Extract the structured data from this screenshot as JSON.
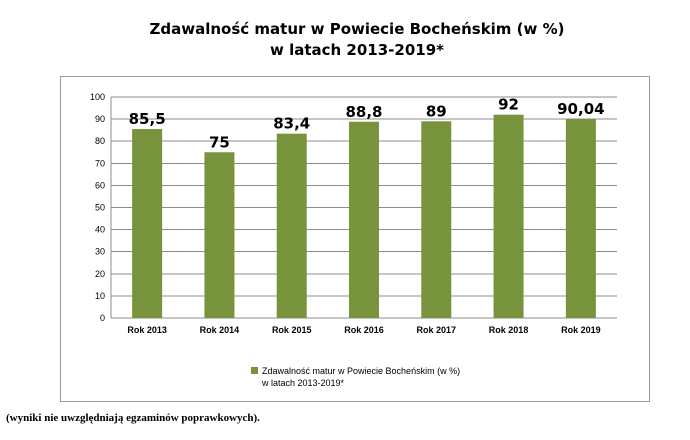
{
  "chart_data": {
    "type": "bar",
    "title_line1": "Zdawalność matur w Powiecie Bocheńskim (w %)",
    "title_line2": "w latach 2013-2019*",
    "categories": [
      "Rok 2013",
      "Rok 2014",
      "Rok 2015",
      "Rok 2016",
      "Rok 2017",
      "Rok 2018",
      "Rok 2019"
    ],
    "values": [
      85.5,
      75,
      83.4,
      88.8,
      89,
      92,
      90.04
    ],
    "data_labels": [
      "85,5",
      "75",
      "83,4",
      "88,8",
      "89",
      "92",
      "90,04"
    ],
    "series_name_line1": "Zdawalność matur w Powiecie Bocheńskim (w %)",
    "series_name_line2": "w latach 2013-2019*",
    "yticks": [
      0,
      10,
      20,
      30,
      40,
      50,
      60,
      70,
      80,
      90,
      100
    ],
    "ylim": [
      0,
      100
    ],
    "xlabel": "",
    "ylabel": "",
    "grid": true,
    "legend_position": "bottom"
  },
  "colors": {
    "bar": "#77933c",
    "grid": "#8c8c8c",
    "axis": "#8c8c8c",
    "frame": "#9a9a9a"
  },
  "footnote": "(wyniki nie uwzględniają egzaminów poprawkowych)."
}
